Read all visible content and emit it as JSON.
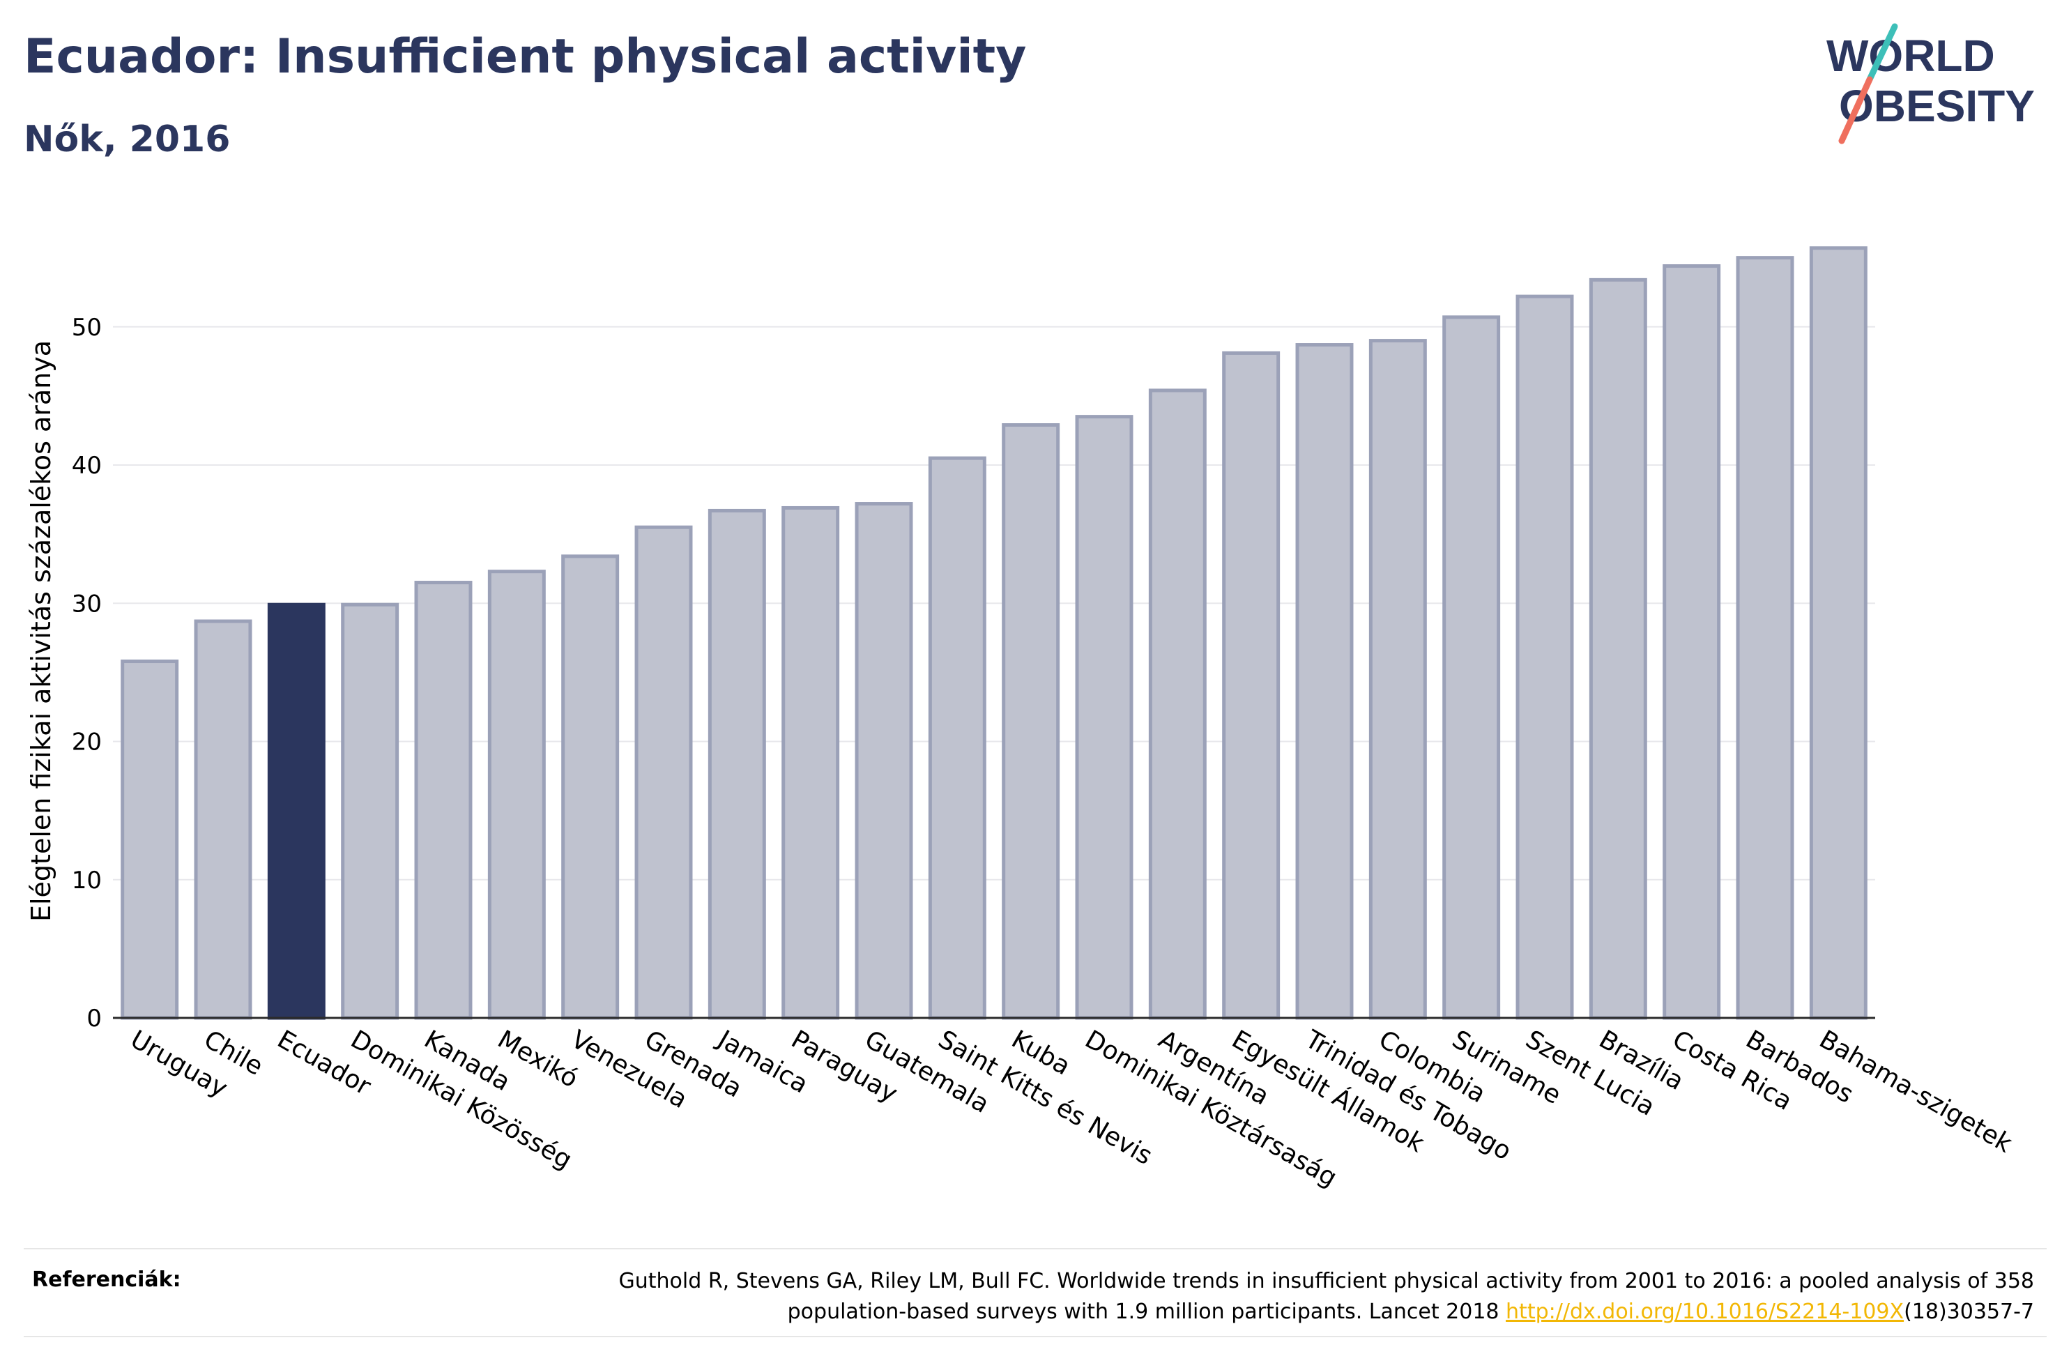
{
  "header": {
    "title": "Ecuador: Insufficient physical activity",
    "subtitle": "Nők, 2016"
  },
  "logo": {
    "line1": "WORLD",
    "line2": "OBESITY"
  },
  "colors": {
    "bar": "#bfc2cf",
    "bar_stroke": "#9ba1b8",
    "highlight": "#2b365e",
    "grid": "#e8e8ec",
    "title": "#2b365e",
    "logo_teal": "#3dbfb8",
    "logo_coral": "#ef6f5e",
    "link": "#f2b705"
  },
  "chart_data": {
    "type": "bar",
    "ylabel": "Elégtelen fizikai aktivitás százalékos aránya",
    "xlabel": "",
    "ylim": [
      0,
      57
    ],
    "yticks": [
      0,
      10,
      20,
      30,
      40,
      50
    ],
    "grid": true,
    "highlight": "Ecuador",
    "categories": [
      "Uruguay",
      "Chile",
      "Ecuador",
      "Dominikai Közösség",
      "Kanada",
      "Mexikó",
      "Venezuela",
      "Grenada",
      "Jamaica",
      "Paraguay",
      "Guatemala",
      "Saint Kitts és Nevis",
      "Kuba",
      "Dominikai Köztársaság",
      "Argentína",
      "Egyesült Államok",
      "Trinidad és Tobago",
      "Colombia",
      "Suriname",
      "Szent Lucia",
      "Brazília",
      "Costa Rica",
      "Barbados",
      "Bahama-szigetek"
    ],
    "values": [
      25.8,
      28.7,
      29.9,
      29.9,
      31.5,
      32.3,
      33.4,
      35.5,
      36.7,
      36.9,
      37.2,
      40.5,
      42.9,
      43.5,
      45.4,
      48.1,
      48.7,
      49.0,
      50.7,
      52.2,
      53.4,
      54.4,
      55.0,
      55.7
    ]
  },
  "footer": {
    "ref_label": "Referenciák:",
    "ref_line1": "Guthold R, Stevens GA, Riley LM, Bull FC. Worldwide trends in insufficient physical activity from 2001 to 2016: a pooled analysis of 358",
    "ref_line2_pre": "population-based surveys with 1.9 million participants. Lancet 2018 ",
    "ref_link": "http://dx.doi.org/10.1016/S2214-109X",
    "ref_line2_post": "(18)30357-7"
  }
}
